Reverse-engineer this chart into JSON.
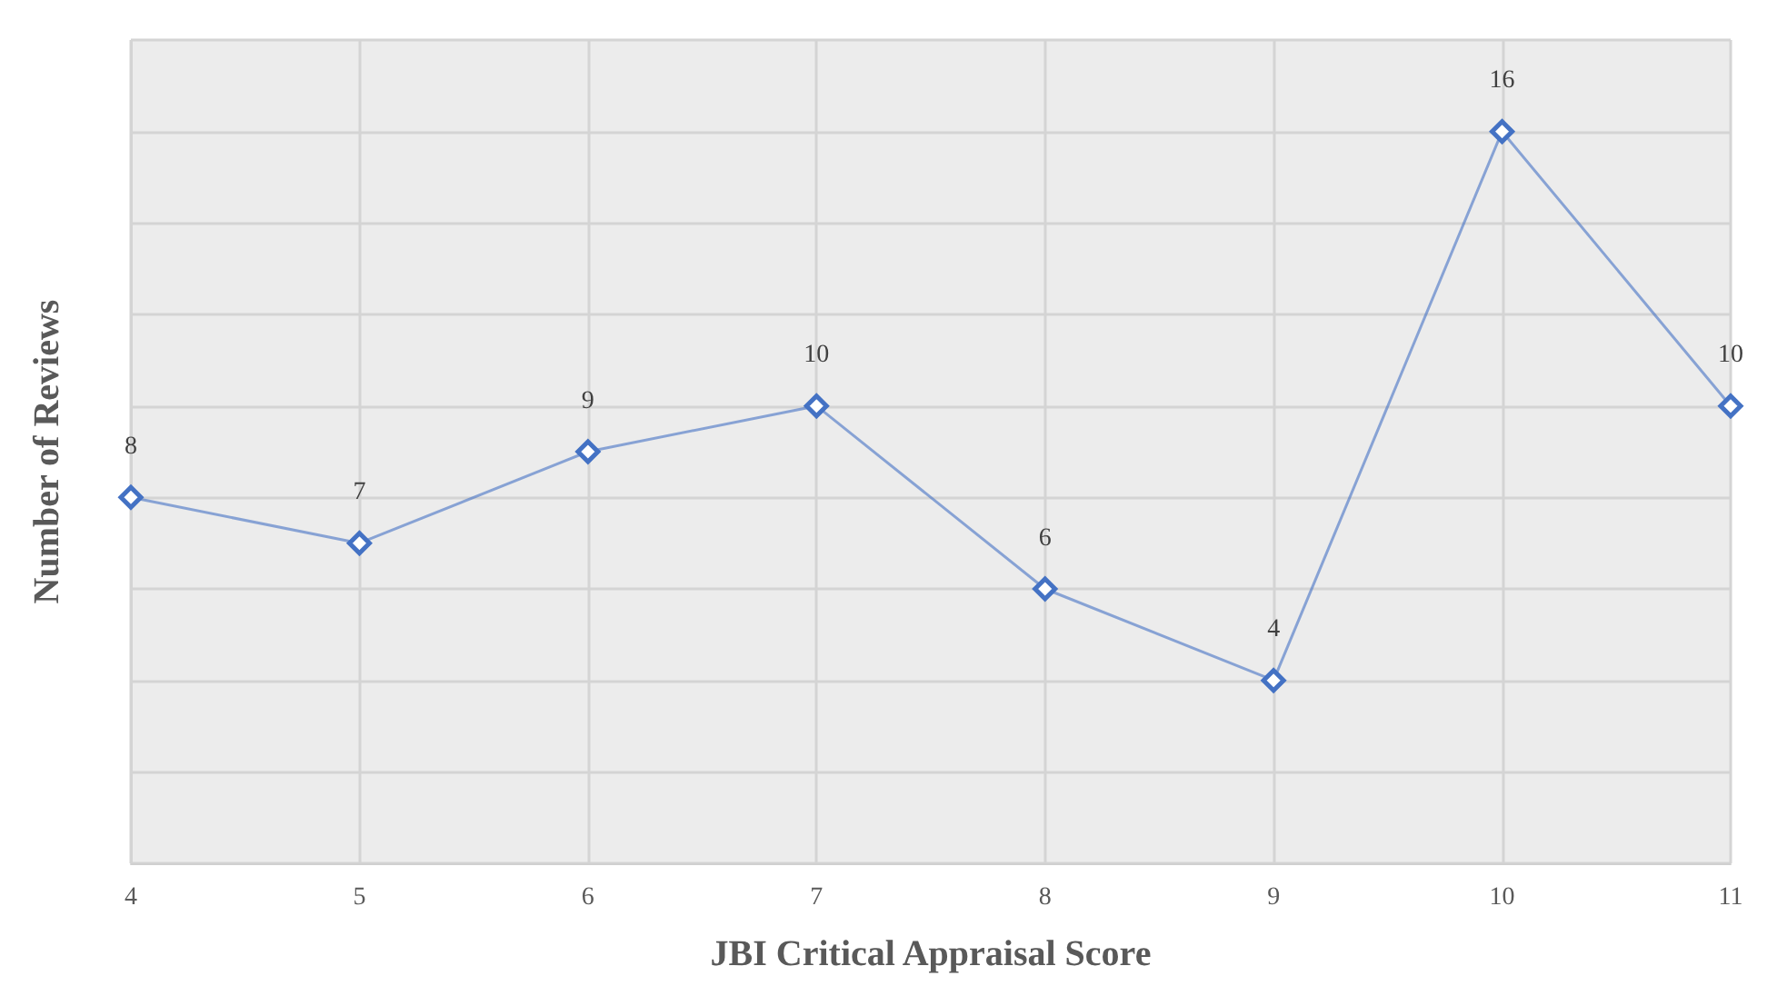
{
  "chart_data": {
    "type": "line",
    "xlabel": "JBI Critical Appraisal Score",
    "ylabel": "Number of Reviews",
    "x": [
      4,
      5,
      6,
      7,
      8,
      9,
      10,
      11
    ],
    "series": [
      {
        "color": "#4472c4",
        "values": [
          8,
          7,
          9,
          10,
          6,
          4,
          16,
          10
        ]
      }
    ],
    "xlim": [
      4,
      11
    ],
    "xticks": [
      4,
      5,
      6,
      7,
      8,
      9,
      10,
      11
    ],
    "ylim": [
      0,
      18
    ],
    "yticks": [
      {
        "value": 0,
        "label": null
      },
      {
        "value": 2,
        "label": null
      },
      {
        "value": 4,
        "label": null
      },
      {
        "value": 6,
        "label": null
      },
      {
        "value": 8,
        "label": null
      },
      {
        "value": 10,
        "label": null
      },
      {
        "value": 12,
        "label": null
      },
      {
        "value": 14,
        "label": null
      },
      {
        "value": 16,
        "label": null
      },
      {
        "value": 18,
        "label": null
      }
    ],
    "tick_labels": "x",
    "grid": true,
    "marker": "diamond",
    "line_style": "solid",
    "data_labels": true
  }
}
